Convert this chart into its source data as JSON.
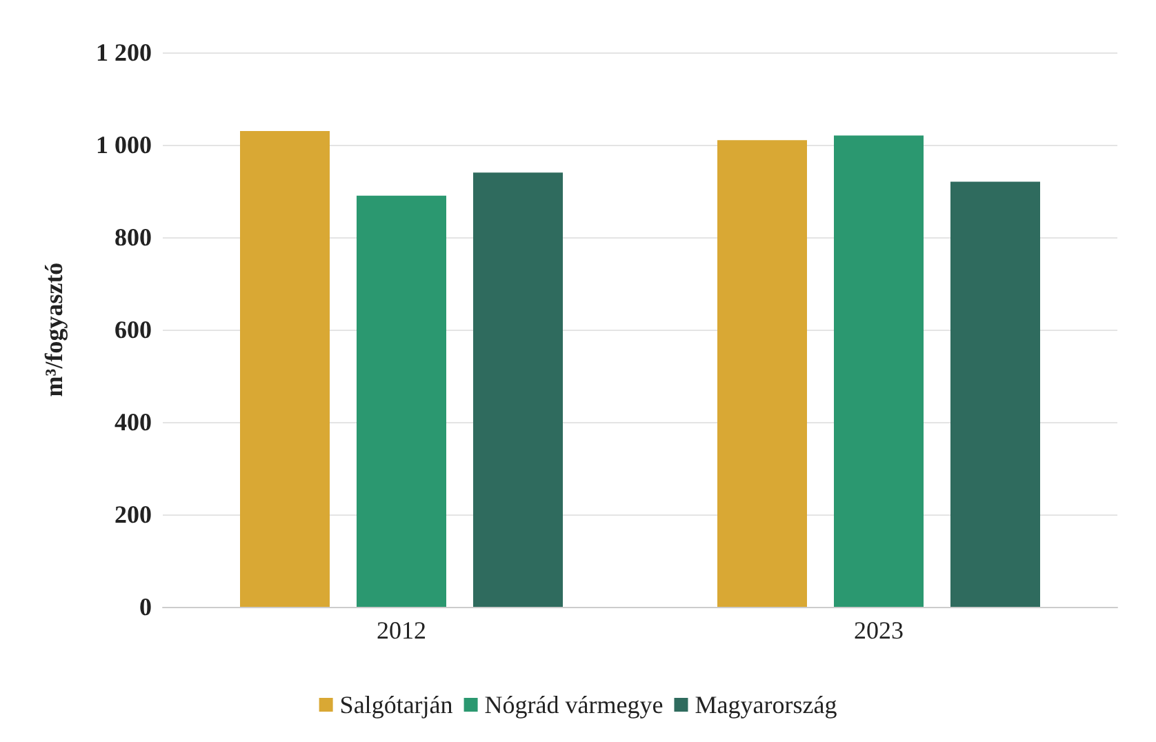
{
  "chart_data": {
    "type": "bar",
    "ylabel": "m³/fogyasztó",
    "categories": [
      "2012",
      "2023"
    ],
    "series": [
      {
        "name": "Salgótarján",
        "color": "#d9a834",
        "values": [
          1030,
          1010
        ]
      },
      {
        "name": "Nógrád vármegye",
        "color": "#2b9870",
        "values": [
          890,
          1020
        ]
      },
      {
        "name": "Magyarország",
        "color": "#2f6b5e",
        "values": [
          940,
          920
        ]
      }
    ],
    "ylim": [
      0,
      1200
    ],
    "yticks": [
      {
        "value": 0,
        "label": "0"
      },
      {
        "value": 200,
        "label": "200"
      },
      {
        "value": 400,
        "label": "400"
      },
      {
        "value": 600,
        "label": "600"
      },
      {
        "value": 800,
        "label": "800"
      },
      {
        "value": 1000,
        "label": "1 000"
      },
      {
        "value": 1200,
        "label": "1 200"
      }
    ],
    "grid": "y",
    "legend": "bottom"
  }
}
